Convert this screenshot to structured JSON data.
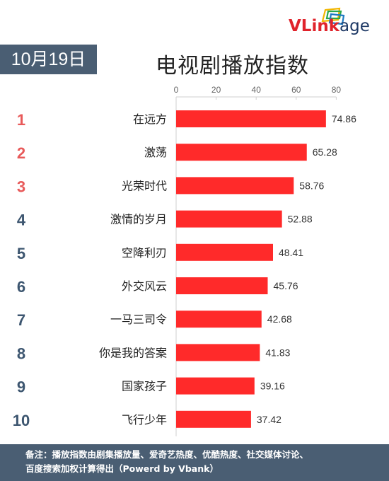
{
  "brand": {
    "logo_text_red": "VLink",
    "logo_text_blue": "age",
    "red": "#e0232b",
    "blue": "#1f3a66"
  },
  "header": {
    "date": "10月19日",
    "title": "电视剧播放指数"
  },
  "footer": {
    "line1": "备注：播放指数由剧集播放量、爱奇艺热度、优酷热度、社交媒体讨论、",
    "line2": "百度搜索加权计算得出（Powerd by Vbank）"
  },
  "colors": {
    "bar": "#ff2a2a",
    "rank_top": "#e85a5a",
    "rank_other": "#3d5670",
    "panel": "#4a5e73"
  },
  "chart_data": {
    "type": "bar",
    "orientation": "horizontal",
    "title": "电视剧播放指数",
    "xlim": [
      0,
      80
    ],
    "x_ticks": [
      0,
      20,
      40,
      60,
      80
    ],
    "grid": false,
    "ranks": [
      "1",
      "2",
      "3",
      "4",
      "5",
      "6",
      "7",
      "8",
      "9",
      "10"
    ],
    "categories": [
      "在远方",
      "激荡",
      "光荣时代",
      "激情的岁月",
      "空降利刃",
      "外交风云",
      "一马三司令",
      "你是我的答案",
      "国家孩子",
      "飞行少年"
    ],
    "values": [
      74.86,
      65.28,
      58.76,
      52.88,
      48.41,
      45.76,
      42.68,
      41.83,
      39.16,
      37.42
    ],
    "value_labels": [
      "74.86",
      "65.28",
      "58.76",
      "52.88",
      "48.41",
      "45.76",
      "42.68",
      "41.83",
      "39.16",
      "37.42"
    ]
  }
}
